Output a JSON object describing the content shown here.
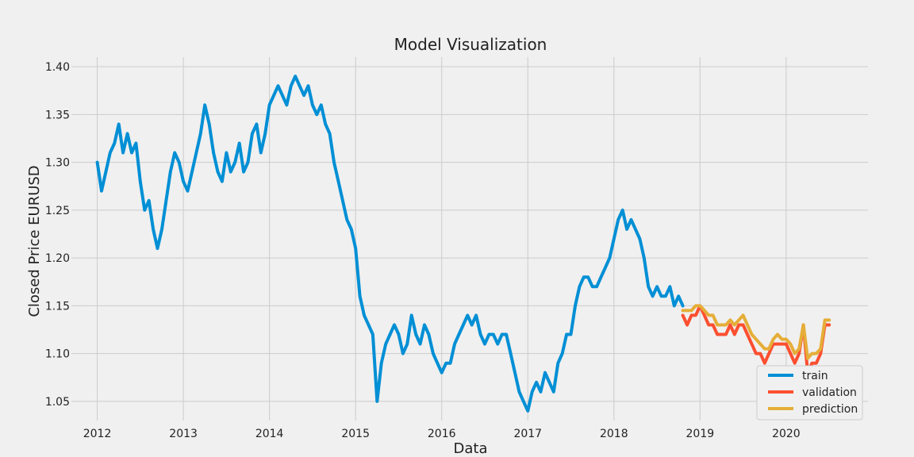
{
  "chart_data": {
    "type": "line",
    "title": "Model Visualization",
    "xlabel": "Data",
    "ylabel": "Closed Price EURUSD",
    "xlim": [
      2011.7,
      2020.95
    ],
    "ylim": [
      1.03,
      1.41
    ],
    "x_ticks": [
      2012,
      2013,
      2014,
      2015,
      2016,
      2017,
      2018,
      2019,
      2020
    ],
    "x_tick_labels": [
      "2012",
      "2013",
      "2014",
      "2015",
      "2016",
      "2017",
      "2018",
      "2019",
      "2020"
    ],
    "y_ticks": [
      1.05,
      1.1,
      1.15,
      1.2,
      1.25,
      1.3,
      1.35,
      1.4
    ],
    "y_tick_labels": [
      "1.05",
      "1.10",
      "1.15",
      "1.20",
      "1.25",
      "1.30",
      "1.35",
      "1.40"
    ],
    "grid": true,
    "legend_position": "bottom-right",
    "series": [
      {
        "name": "train",
        "color": "#008fd5",
        "x": [
          2012.0,
          2012.05,
          2012.1,
          2012.15,
          2012.2,
          2012.25,
          2012.3,
          2012.35,
          2012.4,
          2012.45,
          2012.5,
          2012.55,
          2012.6,
          2012.65,
          2012.7,
          2012.75,
          2012.8,
          2012.85,
          2012.9,
          2012.95,
          2013.0,
          2013.05,
          2013.1,
          2013.15,
          2013.2,
          2013.25,
          2013.3,
          2013.35,
          2013.4,
          2013.45,
          2013.5,
          2013.55,
          2013.6,
          2013.65,
          2013.7,
          2013.75,
          2013.8,
          2013.85,
          2013.9,
          2013.95,
          2014.0,
          2014.05,
          2014.1,
          2014.15,
          2014.2,
          2014.25,
          2014.3,
          2014.35,
          2014.4,
          2014.45,
          2014.5,
          2014.55,
          2014.6,
          2014.65,
          2014.7,
          2014.75,
          2014.8,
          2014.85,
          2014.9,
          2014.95,
          2015.0,
          2015.05,
          2015.1,
          2015.15,
          2015.2,
          2015.25,
          2015.3,
          2015.35,
          2015.4,
          2015.45,
          2015.5,
          2015.55,
          2015.6,
          2015.65,
          2015.7,
          2015.75,
          2015.8,
          2015.85,
          2015.9,
          2015.95,
          2016.0,
          2016.05,
          2016.1,
          2016.15,
          2016.2,
          2016.25,
          2016.3,
          2016.35,
          2016.4,
          2016.45,
          2016.5,
          2016.55,
          2016.6,
          2016.65,
          2016.7,
          2016.75,
          2016.8,
          2016.85,
          2016.9,
          2016.95,
          2017.0,
          2017.05,
          2017.1,
          2017.15,
          2017.2,
          2017.25,
          2017.3,
          2017.35,
          2017.4,
          2017.45,
          2017.5,
          2017.55,
          2017.6,
          2017.65,
          2017.7,
          2017.75,
          2017.8,
          2017.85,
          2017.9,
          2017.95,
          2018.0,
          2018.05,
          2018.1,
          2018.15,
          2018.2,
          2018.25,
          2018.3,
          2018.35,
          2018.4,
          2018.45,
          2018.5,
          2018.55,
          2018.6,
          2018.65,
          2018.7,
          2018.75,
          2018.8
        ],
        "values": [
          1.3,
          1.27,
          1.29,
          1.31,
          1.32,
          1.34,
          1.31,
          1.33,
          1.31,
          1.32,
          1.28,
          1.25,
          1.26,
          1.23,
          1.21,
          1.23,
          1.26,
          1.29,
          1.31,
          1.3,
          1.28,
          1.27,
          1.29,
          1.31,
          1.33,
          1.36,
          1.34,
          1.31,
          1.29,
          1.28,
          1.31,
          1.29,
          1.3,
          1.32,
          1.29,
          1.3,
          1.33,
          1.34,
          1.31,
          1.33,
          1.36,
          1.37,
          1.38,
          1.37,
          1.36,
          1.38,
          1.39,
          1.38,
          1.37,
          1.38,
          1.36,
          1.35,
          1.36,
          1.34,
          1.33,
          1.3,
          1.28,
          1.26,
          1.24,
          1.23,
          1.21,
          1.16,
          1.14,
          1.13,
          1.12,
          1.05,
          1.09,
          1.11,
          1.12,
          1.13,
          1.12,
          1.1,
          1.11,
          1.14,
          1.12,
          1.11,
          1.13,
          1.12,
          1.1,
          1.09,
          1.08,
          1.09,
          1.09,
          1.11,
          1.12,
          1.13,
          1.14,
          1.13,
          1.14,
          1.12,
          1.11,
          1.12,
          1.12,
          1.11,
          1.12,
          1.12,
          1.1,
          1.08,
          1.06,
          1.05,
          1.04,
          1.06,
          1.07,
          1.06,
          1.08,
          1.07,
          1.06,
          1.09,
          1.1,
          1.12,
          1.12,
          1.15,
          1.17,
          1.18,
          1.18,
          1.17,
          1.17,
          1.18,
          1.19,
          1.2,
          1.22,
          1.24,
          1.25,
          1.23,
          1.24,
          1.23,
          1.22,
          1.2,
          1.17,
          1.16,
          1.17,
          1.16,
          1.16,
          1.17,
          1.15,
          1.16,
          1.15
        ]
      },
      {
        "name": "validation",
        "color": "#fc4f30",
        "x": [
          2018.8,
          2018.85,
          2018.9,
          2018.95,
          2019.0,
          2019.05,
          2019.1,
          2019.15,
          2019.2,
          2019.25,
          2019.3,
          2019.35,
          2019.4,
          2019.45,
          2019.5,
          2019.55,
          2019.6,
          2019.65,
          2019.7,
          2019.75,
          2019.8,
          2019.85,
          2019.9,
          2019.95,
          2020.0,
          2020.05,
          2020.1,
          2020.15,
          2020.2,
          2020.25,
          2020.3,
          2020.35,
          2020.4,
          2020.45,
          2020.5
        ],
        "values": [
          1.14,
          1.13,
          1.14,
          1.14,
          1.15,
          1.14,
          1.13,
          1.13,
          1.12,
          1.12,
          1.12,
          1.13,
          1.12,
          1.13,
          1.13,
          1.12,
          1.11,
          1.1,
          1.1,
          1.09,
          1.1,
          1.11,
          1.11,
          1.11,
          1.11,
          1.1,
          1.09,
          1.1,
          1.13,
          1.08,
          1.09,
          1.09,
          1.1,
          1.13,
          1.13
        ]
      },
      {
        "name": "prediction",
        "color": "#e5ae38",
        "x": [
          2018.8,
          2018.85,
          2018.9,
          2018.95,
          2019.0,
          2019.05,
          2019.1,
          2019.15,
          2019.2,
          2019.25,
          2019.3,
          2019.35,
          2019.4,
          2019.45,
          2019.5,
          2019.55,
          2019.6,
          2019.65,
          2019.7,
          2019.75,
          2019.8,
          2019.85,
          2019.9,
          2019.95,
          2020.0,
          2020.05,
          2020.1,
          2020.15,
          2020.2,
          2020.25,
          2020.3,
          2020.35,
          2020.4,
          2020.45,
          2020.5
        ],
        "values": [
          1.145,
          1.145,
          1.145,
          1.15,
          1.15,
          1.145,
          1.14,
          1.14,
          1.13,
          1.13,
          1.13,
          1.135,
          1.13,
          1.135,
          1.14,
          1.13,
          1.12,
          1.115,
          1.11,
          1.105,
          1.105,
          1.115,
          1.12,
          1.115,
          1.115,
          1.11,
          1.1,
          1.105,
          1.13,
          1.095,
          1.1,
          1.1,
          1.105,
          1.135,
          1.135
        ]
      }
    ]
  }
}
